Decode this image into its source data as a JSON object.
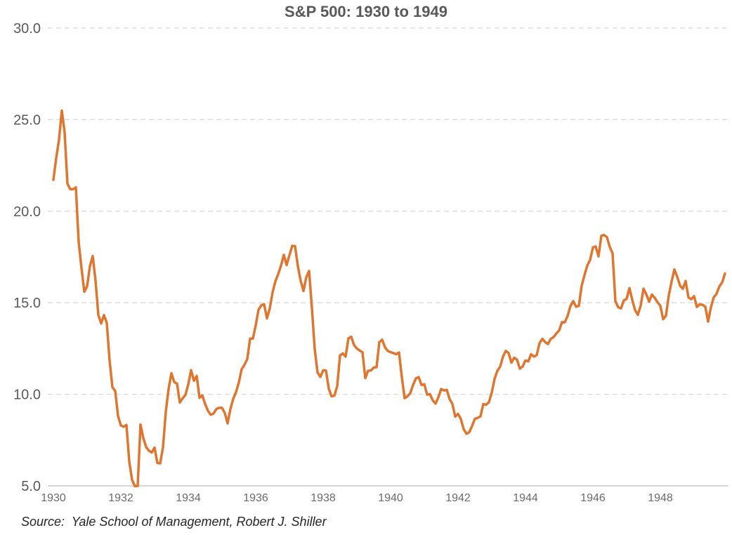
{
  "chart_data": {
    "type": "line",
    "title": "S&P 500: 1930 to 1949",
    "x_start_year": 1930,
    "x_end_year": 1949,
    "frequency": "monthly",
    "ylim": [
      5.0,
      30.0
    ],
    "yticks": [
      30.0,
      25.0,
      20.0,
      15.0,
      10.0,
      5.0
    ],
    "ytick_labels": [
      "30.0",
      "25.0",
      "20.0",
      "15.0",
      "10.0",
      "5.0"
    ],
    "xticks": [
      1930,
      1932,
      1934,
      1936,
      1938,
      1940,
      1942,
      1944,
      1946,
      1948
    ],
    "grid": "horizontal-dashed",
    "legend": "none",
    "series": [
      {
        "name": "S&P 500",
        "color": "#E0752F",
        "values": [
          21.71,
          22.9,
          23.9,
          25.5,
          24.3,
          21.5,
          21.2,
          21.2,
          21.3,
          18.3,
          16.9,
          15.6,
          15.9,
          17.0,
          17.55,
          16.2,
          14.33,
          13.87,
          14.33,
          13.9,
          11.85,
          10.39,
          10.18,
          8.82,
          8.3,
          8.23,
          8.33,
          6.33,
          5.33,
          4.98,
          5.0,
          8.35,
          7.61,
          7.12,
          6.92,
          6.82,
          7.09,
          6.25,
          6.23,
          7.09,
          9.04,
          10.3,
          11.15,
          10.67,
          10.58,
          9.55,
          9.78,
          9.97,
          10.54,
          11.32,
          10.74,
          11.0,
          9.81,
          9.94,
          9.47,
          9.1,
          8.88,
          8.95,
          9.2,
          9.26,
          9.26,
          8.98,
          8.41,
          9.2,
          9.75,
          10.12,
          10.65,
          11.37,
          11.61,
          11.92,
          13.04,
          13.04,
          13.76,
          14.62,
          14.86,
          14.92,
          14.15,
          14.69,
          15.56,
          16.17,
          16.56,
          17.02,
          17.62,
          17.06,
          17.59,
          18.11,
          18.09,
          17.0,
          16.2,
          15.64,
          16.4,
          16.74,
          14.71,
          12.47,
          11.2,
          10.95,
          11.31,
          11.3,
          10.31,
          9.89,
          9.93,
          10.44,
          12.12,
          12.23,
          12.06,
          13.06,
          13.14,
          12.69,
          12.5,
          12.39,
          12.3,
          10.88,
          11.29,
          11.3,
          11.46,
          11.48,
          12.85,
          12.98,
          12.57,
          12.37,
          12.3,
          12.25,
          12.19,
          12.28,
          10.94,
          9.79,
          9.89,
          10.06,
          10.51,
          10.87,
          10.94,
          10.51,
          10.55,
          9.98,
          10.01,
          9.67,
          9.49,
          9.84,
          10.29,
          10.21,
          10.24,
          9.74,
          9.48,
          8.78,
          8.93,
          8.65,
          8.1,
          7.84,
          7.93,
          8.27,
          8.66,
          8.71,
          8.8,
          9.47,
          9.43,
          9.57,
          10.09,
          10.84,
          11.28,
          11.51,
          12.06,
          12.37,
          12.25,
          11.73,
          12.0,
          11.89,
          11.4,
          11.52,
          11.85,
          11.8,
          12.19,
          12.06,
          12.14,
          12.79,
          13.03,
          12.85,
          12.74,
          13.03,
          13.12,
          13.33,
          13.49,
          13.94,
          13.93,
          14.28,
          14.82,
          15.09,
          14.78,
          14.83,
          15.93,
          16.5,
          17.04,
          17.33,
          18.02,
          18.07,
          17.53,
          18.66,
          18.7,
          18.58,
          18.05,
          17.7,
          15.09,
          14.75,
          14.69,
          15.13,
          15.21,
          15.8,
          15.16,
          14.6,
          14.34,
          14.84,
          15.77,
          15.46,
          15.06,
          15.45,
          15.27,
          15.03,
          14.83,
          14.1,
          14.3,
          15.4,
          16.15,
          16.82,
          16.42,
          15.94,
          15.76,
          16.19,
          15.29,
          15.19,
          15.36,
          14.77,
          14.91,
          14.89,
          14.78,
          13.97,
          14.76,
          15.29,
          15.49,
          15.89,
          16.11,
          16.6
        ]
      }
    ]
  },
  "source_note": "Source:  Yale School of Management, Robert J. Shiller",
  "colors": {
    "line": "#E0752F",
    "grid_dashed": "#D9D9D9",
    "axis_bottom": "#C8C8C8",
    "title_text": "#595959",
    "ytick_text": "#595959",
    "xtick_text": "#696969",
    "source_text": "#262626",
    "background": "#FFFFFF"
  }
}
